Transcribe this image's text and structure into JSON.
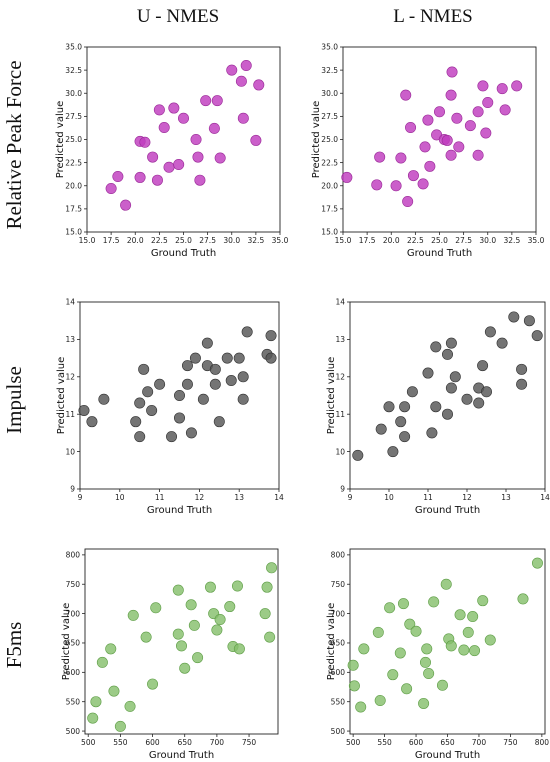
{
  "column_titles": [
    "U - NMES",
    "L - NMES"
  ],
  "row_titles": [
    "Relative Peak Force",
    "Impulse",
    "F5ms"
  ],
  "chart_data": [
    {
      "type": "scatter",
      "row": 0,
      "col": 0,
      "xlabel": "Ground Truth",
      "ylabel": "Predicted value",
      "xlim": [
        15,
        35
      ],
      "ylim": [
        15,
        35
      ],
      "xticks": [
        15.0,
        17.5,
        20.0,
        22.5,
        25.0,
        27.5,
        30.0,
        32.5,
        35.0
      ],
      "yticks": [
        15.0,
        17.5,
        20.0,
        22.5,
        25.0,
        27.5,
        30.0,
        32.5,
        35.0
      ],
      "tick_decimals": 1,
      "color": "#c03cbe",
      "edge": "#9a2a98",
      "points": [
        [
          17.5,
          19.7
        ],
        [
          18.2,
          21.0
        ],
        [
          19.0,
          17.9
        ],
        [
          20.5,
          24.8
        ],
        [
          21.0,
          24.7
        ],
        [
          20.5,
          20.9
        ],
        [
          21.8,
          23.1
        ],
        [
          22.3,
          20.6
        ],
        [
          22.5,
          28.2
        ],
        [
          23.0,
          26.3
        ],
        [
          23.5,
          22.0
        ],
        [
          24.0,
          28.4
        ],
        [
          24.5,
          22.3
        ],
        [
          25.0,
          27.3
        ],
        [
          26.3,
          25.0
        ],
        [
          26.5,
          23.1
        ],
        [
          26.7,
          20.6
        ],
        [
          27.3,
          29.2
        ],
        [
          28.2,
          26.2
        ],
        [
          28.5,
          29.2
        ],
        [
          28.8,
          23.0
        ],
        [
          30.0,
          32.5
        ],
        [
          31.0,
          31.3
        ],
        [
          31.5,
          33.0
        ],
        [
          31.2,
          27.3
        ],
        [
          32.8,
          30.9
        ],
        [
          32.5,
          24.9
        ]
      ]
    },
    {
      "type": "scatter",
      "row": 0,
      "col": 1,
      "xlabel": "Ground Truth",
      "ylabel": "Predicted value",
      "xlim": [
        15,
        35
      ],
      "ylim": [
        15,
        35
      ],
      "xticks": [
        15.0,
        17.5,
        20.0,
        22.5,
        25.0,
        27.5,
        30.0,
        32.5,
        35.0
      ],
      "yticks": [
        15.0,
        17.5,
        20.0,
        22.5,
        25.0,
        27.5,
        30.0,
        32.5,
        35.0
      ],
      "tick_decimals": 1,
      "color": "#c03cbe",
      "edge": "#9a2a98",
      "points": [
        [
          15.4,
          20.9
        ],
        [
          18.5,
          20.1
        ],
        [
          18.8,
          23.1
        ],
        [
          20.5,
          20.0
        ],
        [
          21.0,
          23.0
        ],
        [
          21.5,
          29.8
        ],
        [
          21.7,
          18.3
        ],
        [
          22.0,
          26.3
        ],
        [
          22.3,
          21.1
        ],
        [
          23.3,
          20.2
        ],
        [
          23.5,
          24.2
        ],
        [
          23.8,
          27.1
        ],
        [
          24.0,
          22.1
        ],
        [
          24.7,
          25.5
        ],
        [
          25.0,
          28.0
        ],
        [
          25.5,
          25.0
        ],
        [
          25.8,
          24.9
        ],
        [
          26.2,
          23.3
        ],
        [
          26.2,
          29.8
        ],
        [
          26.3,
          32.3
        ],
        [
          26.8,
          27.3
        ],
        [
          27.0,
          24.2
        ],
        [
          28.2,
          26.5
        ],
        [
          29.0,
          23.3
        ],
        [
          29.0,
          28.0
        ],
        [
          29.5,
          30.8
        ],
        [
          29.8,
          25.7
        ],
        [
          30.0,
          29.0
        ],
        [
          31.5,
          30.5
        ],
        [
          31.8,
          28.2
        ],
        [
          33.0,
          30.8
        ]
      ]
    },
    {
      "type": "scatter",
      "row": 1,
      "col": 0,
      "xlabel": "Ground Truth",
      "ylabel": "Predicted value",
      "xlim": [
        9,
        14
      ],
      "ylim": [
        9,
        14
      ],
      "xticks": [
        9,
        10,
        11,
        12,
        13,
        14
      ],
      "yticks": [
        9,
        10,
        11,
        12,
        13,
        14
      ],
      "tick_decimals": 0,
      "color": "#555555",
      "edge": "#333333",
      "points": [
        [
          9.1,
          11.1
        ],
        [
          9.3,
          10.8
        ],
        [
          9.6,
          11.4
        ],
        [
          10.4,
          10.8
        ],
        [
          10.5,
          10.4
        ],
        [
          10.5,
          11.3
        ],
        [
          10.6,
          12.2
        ],
        [
          10.7,
          11.6
        ],
        [
          10.8,
          11.1
        ],
        [
          11.0,
          11.8
        ],
        [
          11.3,
          10.4
        ],
        [
          11.5,
          10.9
        ],
        [
          11.5,
          11.5
        ],
        [
          11.7,
          12.3
        ],
        [
          11.7,
          11.8
        ],
        [
          11.8,
          10.5
        ],
        [
          11.9,
          12.5
        ],
        [
          12.1,
          11.4
        ],
        [
          12.2,
          12.3
        ],
        [
          12.2,
          12.9
        ],
        [
          12.4,
          12.2
        ],
        [
          12.4,
          11.8
        ],
        [
          12.5,
          10.8
        ],
        [
          12.7,
          12.5
        ],
        [
          12.8,
          11.9
        ],
        [
          13.0,
          12.5
        ],
        [
          13.1,
          12.0
        ],
        [
          13.1,
          11.4
        ],
        [
          13.2,
          13.2
        ],
        [
          13.7,
          12.6
        ],
        [
          13.8,
          13.1
        ],
        [
          13.8,
          12.5
        ]
      ]
    },
    {
      "type": "scatter",
      "row": 1,
      "col": 1,
      "xlabel": "Ground Truth",
      "ylabel": "Predicted value",
      "xlim": [
        9,
        14
      ],
      "ylim": [
        9,
        14
      ],
      "xticks": [
        9,
        10,
        11,
        12,
        13,
        14
      ],
      "yticks": [
        9,
        10,
        11,
        12,
        13,
        14
      ],
      "tick_decimals": 0,
      "color": "#555555",
      "edge": "#333333",
      "points": [
        [
          9.2,
          9.9
        ],
        [
          9.8,
          10.6
        ],
        [
          10.0,
          11.2
        ],
        [
          10.1,
          10.0
        ],
        [
          10.3,
          10.8
        ],
        [
          10.4,
          10.4
        ],
        [
          10.4,
          11.2
        ],
        [
          10.6,
          11.6
        ],
        [
          11.0,
          12.1
        ],
        [
          11.1,
          10.5
        ],
        [
          11.2,
          11.2
        ],
        [
          11.2,
          12.8
        ],
        [
          11.5,
          11.0
        ],
        [
          11.5,
          12.6
        ],
        [
          11.6,
          11.7
        ],
        [
          11.6,
          12.9
        ],
        [
          11.7,
          12.0
        ],
        [
          12.0,
          11.4
        ],
        [
          12.3,
          11.7
        ],
        [
          12.3,
          11.3
        ],
        [
          12.4,
          12.3
        ],
        [
          12.5,
          11.6
        ],
        [
          12.6,
          13.2
        ],
        [
          12.9,
          12.9
        ],
        [
          13.2,
          13.6
        ],
        [
          13.4,
          12.2
        ],
        [
          13.4,
          11.8
        ],
        [
          13.6,
          13.5
        ],
        [
          13.8,
          13.1
        ]
      ]
    },
    {
      "type": "scatter",
      "row": 2,
      "col": 0,
      "xlabel": "Ground Truth",
      "ylabel": "Predicted value",
      "xlim": [
        495,
        795
      ],
      "ylim": [
        495,
        810
      ],
      "xticks": [
        500,
        550,
        600,
        650,
        700,
        750
      ],
      "yticks": [
        500,
        550,
        600,
        650,
        700,
        750,
        800
      ],
      "tick_decimals": 0,
      "color": "#86c06c",
      "edge": "#5f9e47",
      "points": [
        [
          507,
          522
        ],
        [
          512,
          550
        ],
        [
          522,
          617
        ],
        [
          535,
          640
        ],
        [
          540,
          568
        ],
        [
          550,
          508
        ],
        [
          565,
          542
        ],
        [
          570,
          697
        ],
        [
          590,
          660
        ],
        [
          600,
          580
        ],
        [
          605,
          710
        ],
        [
          640,
          740
        ],
        [
          640,
          665
        ],
        [
          645,
          645
        ],
        [
          650,
          607
        ],
        [
          660,
          715
        ],
        [
          665,
          680
        ],
        [
          670,
          625
        ],
        [
          690,
          745
        ],
        [
          695,
          700
        ],
        [
          700,
          672
        ],
        [
          705,
          690
        ],
        [
          720,
          712
        ],
        [
          725,
          644
        ],
        [
          732,
          747
        ],
        [
          735,
          640
        ],
        [
          775,
          700
        ],
        [
          778,
          745
        ],
        [
          782,
          660
        ],
        [
          785,
          778
        ]
      ]
    },
    {
      "type": "scatter",
      "row": 2,
      "col": 1,
      "xlabel": "Ground Truth",
      "ylabel": "Predicted value",
      "xlim": [
        495,
        805
      ],
      "ylim": [
        495,
        810
      ],
      "xticks": [
        500,
        550,
        600,
        650,
        700,
        750,
        800
      ],
      "yticks": [
        500,
        550,
        600,
        650,
        700,
        750,
        800
      ],
      "tick_decimals": 0,
      "color": "#86c06c",
      "edge": "#5f9e47",
      "points": [
        [
          500,
          612
        ],
        [
          502,
          577
        ],
        [
          512,
          541
        ],
        [
          517,
          640
        ],
        [
          540,
          668
        ],
        [
          543,
          552
        ],
        [
          558,
          710
        ],
        [
          563,
          596
        ],
        [
          575,
          633
        ],
        [
          580,
          717
        ],
        [
          585,
          572
        ],
        [
          590,
          682
        ],
        [
          600,
          670
        ],
        [
          612,
          547
        ],
        [
          615,
          617
        ],
        [
          617,
          640
        ],
        [
          620,
          598
        ],
        [
          628,
          720
        ],
        [
          642,
          578
        ],
        [
          648,
          750
        ],
        [
          652,
          657
        ],
        [
          656,
          645
        ],
        [
          670,
          698
        ],
        [
          676,
          638
        ],
        [
          683,
          668
        ],
        [
          690,
          695
        ],
        [
          693,
          637
        ],
        [
          706,
          722
        ],
        [
          718,
          655
        ],
        [
          770,
          725
        ],
        [
          793,
          786
        ]
      ]
    }
  ]
}
